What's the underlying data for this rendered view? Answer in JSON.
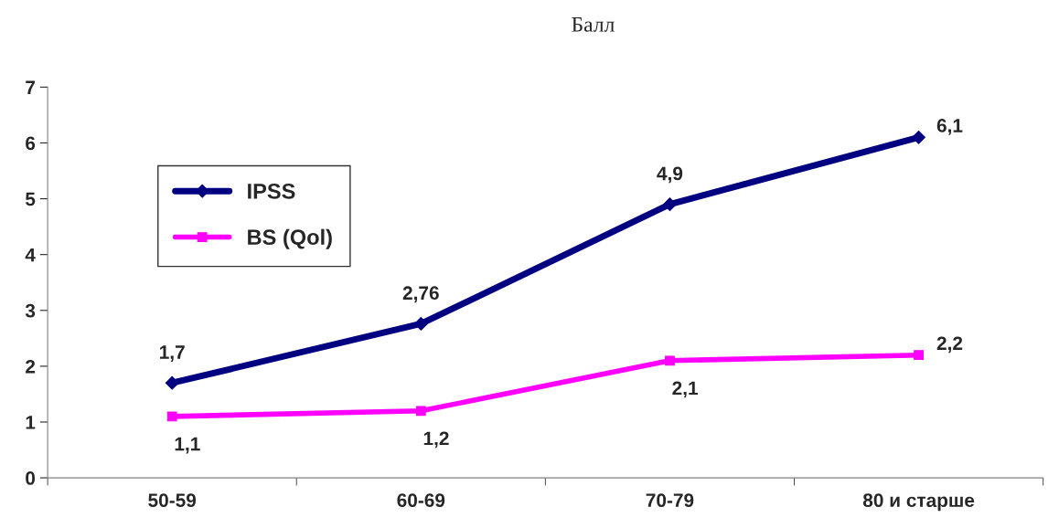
{
  "chart_data": {
    "type": "line",
    "title": "Балл",
    "categories": [
      "50-59",
      "60-69",
      "70-79",
      "80 и старше"
    ],
    "series": [
      {
        "name": "IPSS",
        "color": "#000080",
        "values": [
          1.7,
          2.76,
          4.9,
          6.1
        ],
        "value_labels": [
          "1,7",
          "2,76",
          "4,9",
          "6,1"
        ],
        "marker": "diamond"
      },
      {
        "name": "BS (Qol)",
        "color": "#ff00ff",
        "values": [
          1.1,
          1.2,
          2.1,
          2.2
        ],
        "value_labels": [
          "1,1",
          "1,2",
          "2,1",
          "2,2"
        ],
        "marker": "square"
      }
    ],
    "ylim": [
      0,
      7
    ],
    "yticks": [
      0,
      1,
      2,
      3,
      4,
      5,
      6,
      7
    ],
    "grid": false,
    "legend": "left",
    "line_style": "solid"
  }
}
